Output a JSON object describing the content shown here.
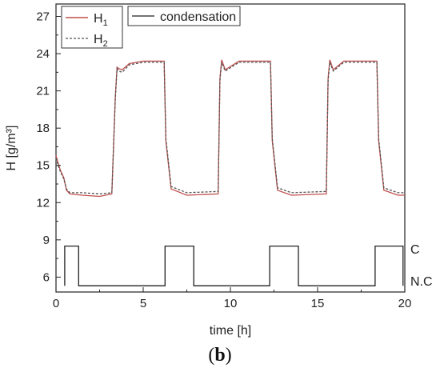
{
  "chart_data": {
    "type": "line",
    "xlabel": "time [h]",
    "ylabel": "H [g/m³]",
    "xlim": [
      0,
      20
    ],
    "ylim": [
      4.8,
      28
    ],
    "x_ticks": [
      0,
      5,
      10,
      15,
      20
    ],
    "y_ticks": [
      6,
      9,
      12,
      15,
      18,
      21,
      24,
      27
    ],
    "grid": false,
    "panel_label": "(b)",
    "legends": [
      {
        "placement": "top-left",
        "entries": [
          "H1",
          "H2"
        ]
      },
      {
        "placement": "top-center",
        "entries": [
          "condensation"
        ]
      }
    ],
    "state_labels": [
      "C",
      "N.C"
    ],
    "series": [
      {
        "name": "H1",
        "color": "#c0504d",
        "style": "solid",
        "x": [
          0,
          0.12,
          0.25,
          0.45,
          0.6,
          0.8,
          1.5,
          2.5,
          3.2,
          3.4,
          3.5,
          3.6,
          3.8,
          4.2,
          5,
          6.2,
          6.3,
          6.6,
          7.5,
          9.3,
          9.4,
          9.5,
          9.7,
          10.5,
          12.3,
          12.4,
          12.7,
          13.5,
          15.5,
          15.6,
          15.7,
          15.9,
          16.5,
          18.4,
          18.5,
          18.8,
          19.6,
          20
        ],
        "values": [
          15.8,
          15.2,
          14.6,
          14.0,
          13.0,
          12.7,
          12.6,
          12.5,
          12.7,
          20.5,
          22.9,
          22.8,
          22.7,
          23.2,
          23.4,
          23.4,
          17.0,
          13.1,
          12.6,
          12.7,
          22.0,
          23.5,
          22.7,
          23.4,
          23.4,
          17.0,
          13.0,
          12.6,
          12.7,
          22.0,
          23.5,
          22.7,
          23.4,
          23.4,
          17.0,
          13.0,
          12.6,
          12.6
        ]
      },
      {
        "name": "H2",
        "color": "#555555",
        "style": "dashed",
        "x": [
          0,
          0.12,
          0.25,
          0.45,
          0.6,
          0.8,
          1.5,
          2.5,
          3.2,
          3.4,
          3.5,
          3.6,
          3.8,
          4.2,
          5,
          6.2,
          6.3,
          6.6,
          7.5,
          9.3,
          9.4,
          9.5,
          9.7,
          10.5,
          12.3,
          12.4,
          12.7,
          13.5,
          15.5,
          15.6,
          15.7,
          15.9,
          16.5,
          18.4,
          18.5,
          18.8,
          19.6,
          20
        ],
        "values": [
          15.6,
          15.0,
          14.5,
          13.9,
          13.1,
          12.8,
          12.8,
          12.7,
          12.8,
          20.3,
          22.8,
          22.6,
          22.5,
          23.1,
          23.3,
          23.3,
          17.2,
          13.3,
          12.8,
          12.9,
          21.8,
          23.3,
          22.6,
          23.3,
          23.3,
          17.2,
          13.2,
          12.8,
          12.9,
          21.8,
          23.3,
          22.6,
          23.3,
          23.3,
          17.2,
          13.2,
          12.8,
          12.8
        ]
      },
      {
        "name": "condensation",
        "color": "#222222",
        "style": "solid",
        "x": [
          0.5,
          0.5,
          1.3,
          1.3,
          6.25,
          6.25,
          7.9,
          7.9,
          12.25,
          12.25,
          13.9,
          13.9,
          18.3,
          18.3,
          19.9,
          19.9
        ],
        "values": [
          5.3,
          8.5,
          8.5,
          5.3,
          5.3,
          8.5,
          8.5,
          5.3,
          5.3,
          8.5,
          8.5,
          5.3,
          5.3,
          8.5,
          8.5,
          5.3
        ]
      }
    ]
  }
}
